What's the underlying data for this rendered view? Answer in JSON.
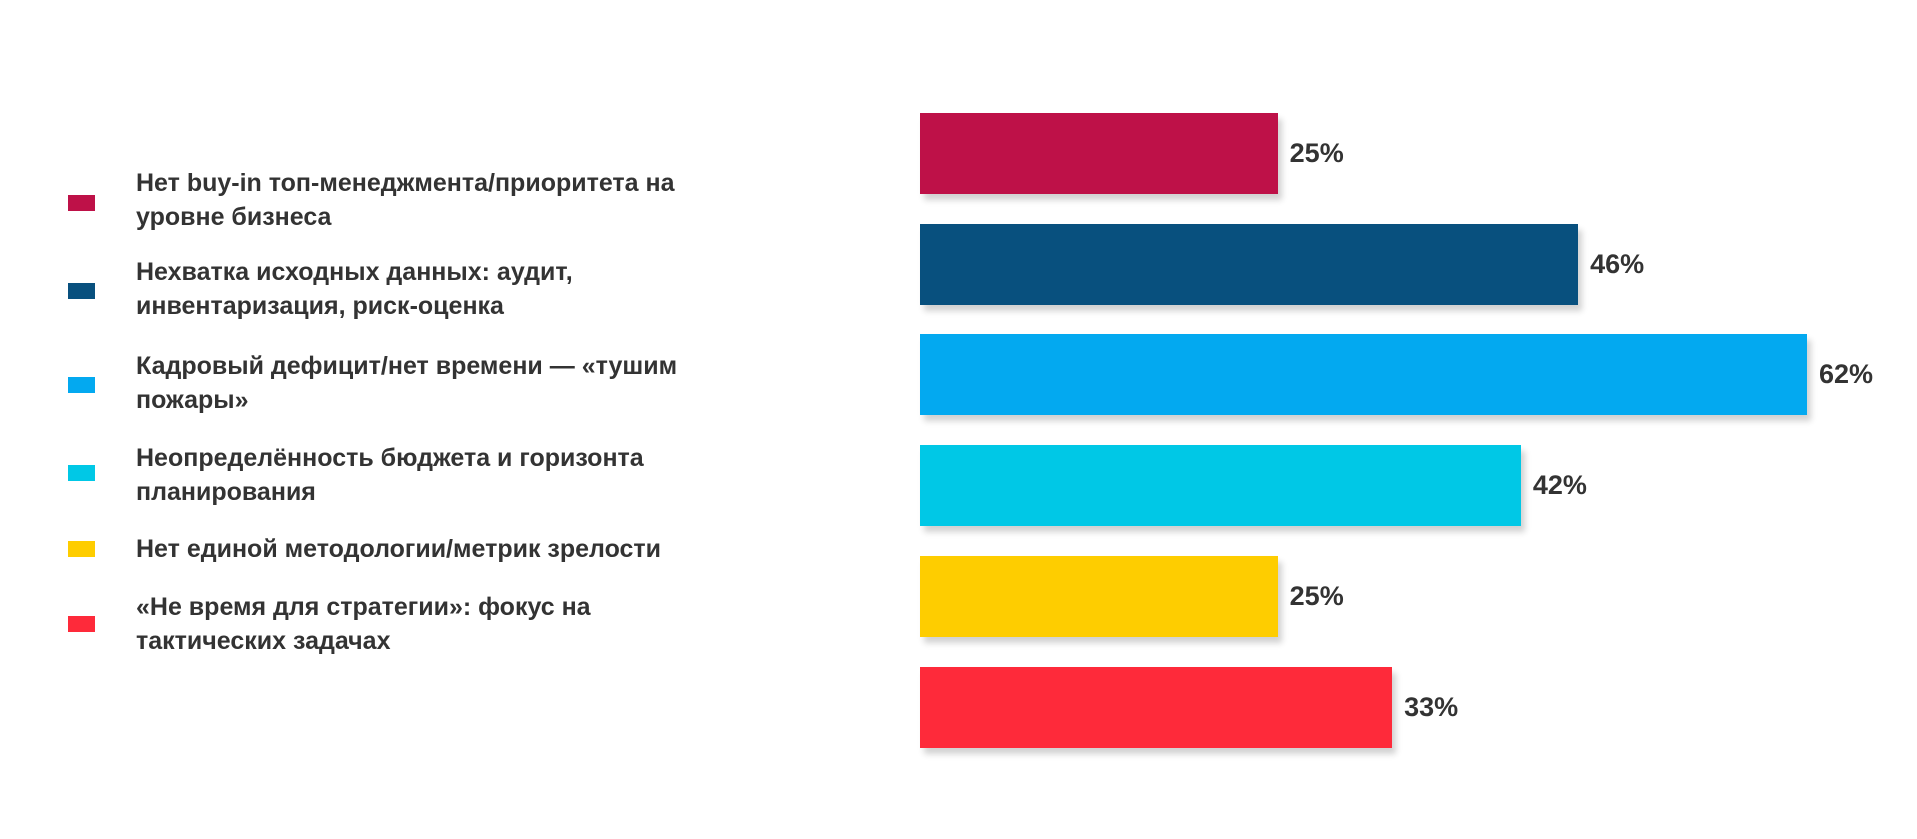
{
  "chart_data": {
    "type": "bar",
    "orientation": "horizontal",
    "categories": [
      "Нет buy-in топ-менеджмента/приоритета на уровне бизнеса",
      "Нехватка исходных данных: аудит, инвентаризация, риск-оценка",
      "Кадровый дефицит/нет времени — «тушим пожары»",
      "Неопределённость бюджета и горизонта планирования",
      "Нет единой методологии/метрик зрелости",
      "«Не время для стратегии»: фокус на тактических задачах"
    ],
    "values": [
      25,
      46,
      62,
      42,
      25,
      33
    ],
    "value_labels": [
      "25%",
      "46%",
      "62%",
      "42%",
      "25%",
      "33%"
    ],
    "colors": [
      "#be1148",
      "#08507e",
      "#03a9f0",
      "#00c8e6",
      "#fecd00",
      "#fe2a3a"
    ],
    "legend": "left"
  }
}
